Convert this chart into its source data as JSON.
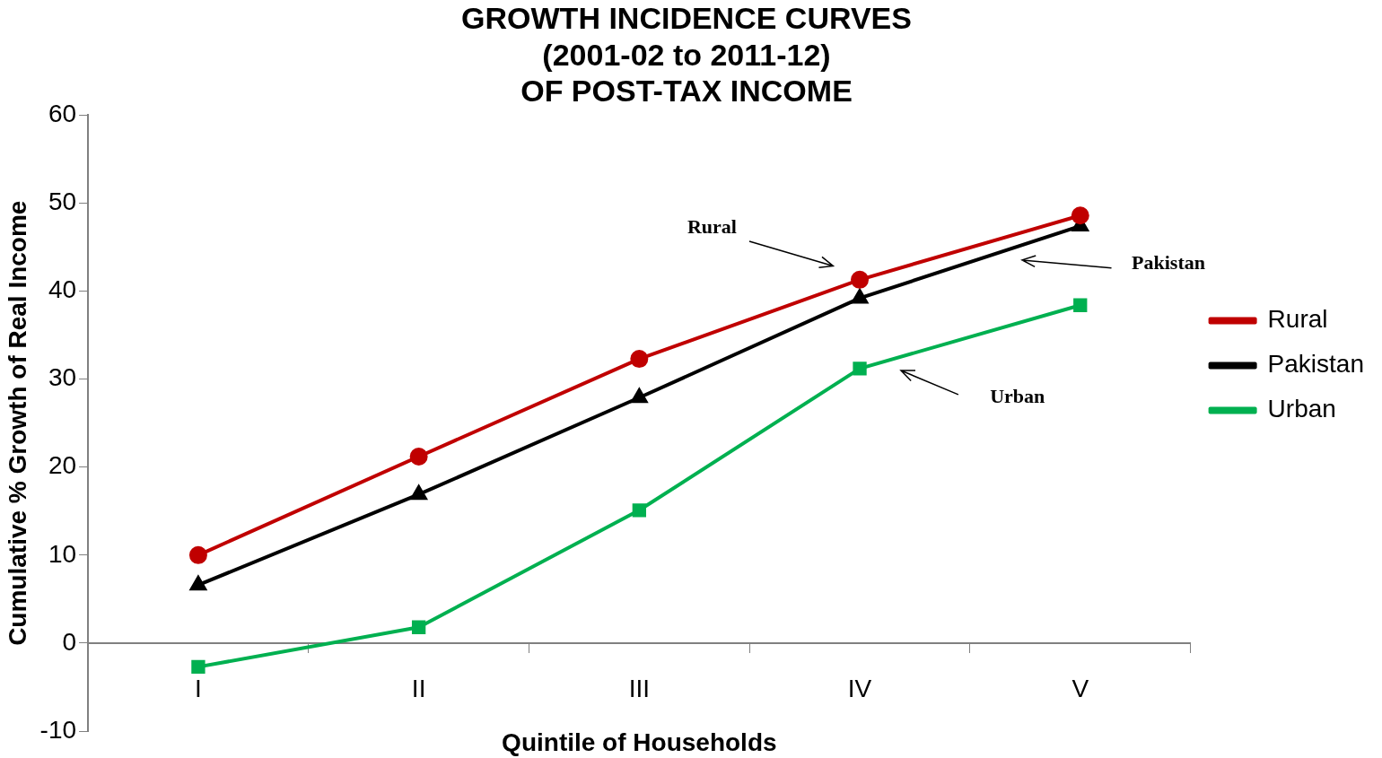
{
  "chart_data": {
    "type": "line",
    "title": "GROWTH INCIDENCE CURVES\n(2001-02 to 2011-12)\nOF POST-TAX INCOME",
    "xlabel": "Quintile of Households",
    "ylabel": "Cumulative % Growth of Real Income",
    "categories": [
      "I",
      "II",
      "III",
      "IV",
      "V"
    ],
    "series": [
      {
        "name": "Rural",
        "color": "#c00000",
        "marker": "circle",
        "values": [
          10.0,
          21.2,
          32.3,
          41.3,
          48.6
        ]
      },
      {
        "name": "Pakistan",
        "color": "#000000",
        "marker": "triangle",
        "values": [
          6.6,
          16.9,
          27.9,
          39.2,
          47.4
        ]
      },
      {
        "name": "Urban",
        "color": "#00b050",
        "marker": "square",
        "values": [
          -2.7,
          1.8,
          15.1,
          31.2,
          38.4
        ]
      }
    ],
    "ylim": [
      -10,
      60
    ],
    "yticks": [
      -10,
      0,
      10,
      20,
      30,
      40,
      50,
      60
    ],
    "grid": false,
    "legend": "right",
    "annotations": [
      "Rural",
      "Pakistan",
      "Urban"
    ]
  }
}
